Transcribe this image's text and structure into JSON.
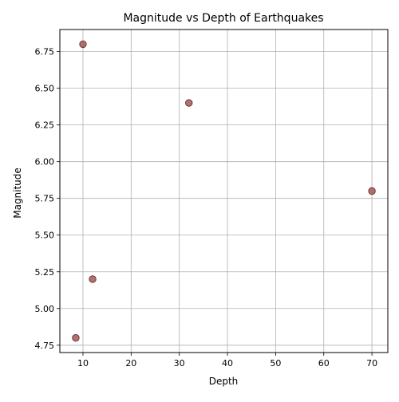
{
  "chart_data": {
    "type": "scatter",
    "title": "Magnitude vs Depth of Earthquakes",
    "xlabel": "Depth",
    "ylabel": "Magnitude",
    "xlim": [
      5.2,
      73.3
    ],
    "ylim": [
      4.7,
      6.9
    ],
    "xticks": [
      10,
      20,
      30,
      40,
      50,
      60,
      70
    ],
    "xtick_labels": [
      "10",
      "20",
      "30",
      "40",
      "50",
      "60",
      "70"
    ],
    "yticks": [
      4.75,
      5.0,
      5.25,
      5.5,
      5.75,
      6.0,
      6.25,
      6.5,
      6.75
    ],
    "ytick_labels": [
      "4.75",
      "5.00",
      "5.25",
      "5.50",
      "5.75",
      "6.00",
      "6.25",
      "6.50",
      "6.75"
    ],
    "grid": true,
    "marker_color": "#a05a5a",
    "marker_edge_color": "#7a2e2e",
    "points": [
      {
        "x": 10,
        "y": 6.8
      },
      {
        "x": 32,
        "y": 6.4
      },
      {
        "x": 70,
        "y": 5.8
      },
      {
        "x": 12,
        "y": 5.2
      },
      {
        "x": 8.5,
        "y": 4.8
      }
    ]
  }
}
